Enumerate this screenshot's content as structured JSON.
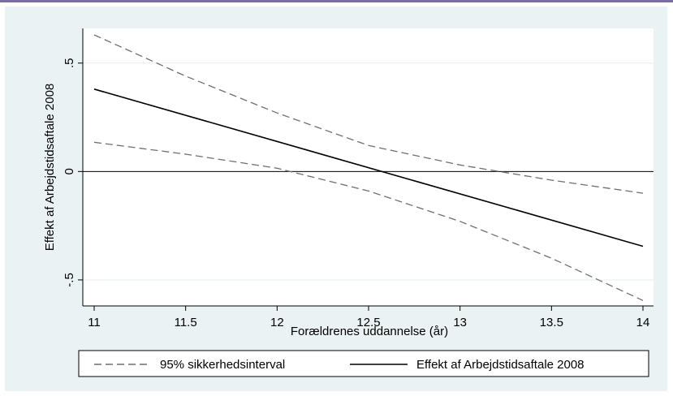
{
  "chart_data": {
    "type": "line",
    "title": "",
    "xlabel": "Forældrenes uddannelse (år)",
    "ylabel": "Effekt af Arbejdstidsaftale 2008",
    "xlim": [
      11,
      14
    ],
    "ylim": [
      -0.62,
      0.66
    ],
    "x_ticks": [
      {
        "value": 11,
        "label": "11"
      },
      {
        "value": 11.5,
        "label": "11.5"
      },
      {
        "value": 12,
        "label": "12"
      },
      {
        "value": 12.5,
        "label": "12.5"
      },
      {
        "value": 13,
        "label": "13"
      },
      {
        "value": 13.5,
        "label": "13.5"
      },
      {
        "value": 14,
        "label": "14"
      }
    ],
    "y_ticks": [
      {
        "value": -0.5,
        "label": "-.5"
      },
      {
        "value": 0,
        "label": "0"
      },
      {
        "value": 0.5,
        "label": ".5"
      }
    ],
    "grid": true,
    "reference_line_y": 0,
    "series": [
      {
        "name": "95% sikkerhedsinterval",
        "role": "upper",
        "style": "dashed",
        "color": "#6e6e6e",
        "x": [
          11,
          11.5,
          12,
          12.5,
          13,
          13.5,
          14
        ],
        "y": [
          0.63,
          0.44,
          0.27,
          0.12,
          0.03,
          -0.04,
          -0.1
        ]
      },
      {
        "name": "95% sikkerhedsinterval",
        "role": "lower",
        "style": "dashed",
        "color": "#6e6e6e",
        "x": [
          11,
          11.5,
          12,
          12.5,
          13,
          13.5,
          14
        ],
        "y": [
          0.135,
          0.08,
          0.015,
          -0.09,
          -0.23,
          -0.4,
          -0.595
        ]
      },
      {
        "name": "Effekt af Arbejdstidsaftale 2008",
        "role": "estimate",
        "style": "solid",
        "color": "#000000",
        "x": [
          11,
          14
        ],
        "y": [
          0.38,
          -0.345
        ]
      }
    ],
    "legend": {
      "position": "bottom",
      "entries": [
        {
          "label": "95% sikkerhedsinterval",
          "style": "dashed",
          "color": "#6e6e6e"
        },
        {
          "label": "Effekt af Arbejdstidsaftale 2008",
          "style": "solid",
          "color": "#000000"
        }
      ]
    }
  }
}
